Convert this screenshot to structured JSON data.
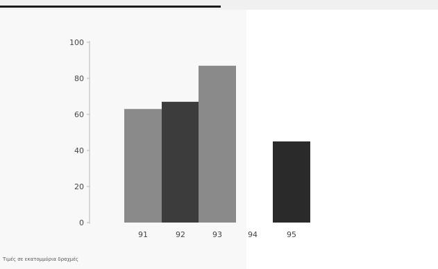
{
  "chart_data": {
    "type": "bar",
    "title": "",
    "xlabel": "",
    "ylabel": "",
    "ylim": [
      0,
      100
    ],
    "yticks": [
      "0",
      "20",
      "40",
      "60",
      "80",
      "100"
    ],
    "categories": [
      "91",
      "92",
      "93",
      "94",
      "95"
    ],
    "values": [
      63,
      67,
      87,
      null,
      45
    ],
    "colors": [
      "#8a8a8a",
      "#3c3c3c",
      "#8a8a8a",
      "#8a8a8a",
      "#2a2a2a"
    ],
    "grid": false,
    "legend": "none"
  },
  "caption": "Τιμές σε εκατομμύρια δραχμές"
}
